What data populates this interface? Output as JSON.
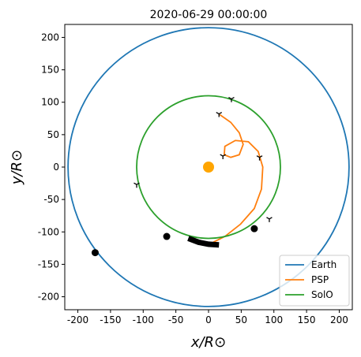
{
  "chart_data": {
    "type": "orbit",
    "title": "2020-06-29 00:00:00",
    "xlabel": "x/R⊙",
    "ylabel": "y/R⊙",
    "xlim": [
      -220,
      220
    ],
    "ylim": [
      -220,
      220
    ],
    "xticks": [
      -200,
      -150,
      -100,
      -50,
      0,
      50,
      100,
      150,
      200
    ],
    "yticks": [
      -200,
      -150,
      -100,
      -50,
      0,
      50,
      100,
      150,
      200
    ],
    "legend": "lower right",
    "series": [
      {
        "name": "Earth",
        "color": "#1f77b4",
        "radius": 215
      },
      {
        "name": "PSP",
        "color": "#ff7f0e",
        "x": [
          17,
          34,
          47,
          53,
          47,
          34,
          24,
          25,
          41,
          61,
          76,
          83,
          81,
          70,
          49,
          25,
          7
        ],
        "y": [
          81,
          69,
          53,
          35,
          19,
          15,
          19,
          32,
          41,
          39,
          24,
          0,
          -34,
          -64,
          -88,
          -107,
          -116
        ]
      },
      {
        "name": "SolO",
        "color": "#2ca02c",
        "radius": 110
      }
    ],
    "track": {
      "x": [
        -31,
        -15,
        0,
        16
      ],
      "y": [
        -110,
        -116,
        -119,
        -120
      ],
      "color": "#000000"
    },
    "positions": {
      "x": [
        -173.5,
        -64,
        70
      ],
      "y": [
        -132,
        -107,
        -95
      ],
      "color": "#000000"
    },
    "markers": {
      "x": [
        35,
        16,
        -110,
        93,
        22,
        78
      ],
      "y": [
        105,
        82,
        -27,
        -80,
        17,
        15
      ],
      "color": "#000000"
    },
    "sun": {
      "x": 0,
      "y": 0,
      "color": "#ffa500"
    }
  }
}
